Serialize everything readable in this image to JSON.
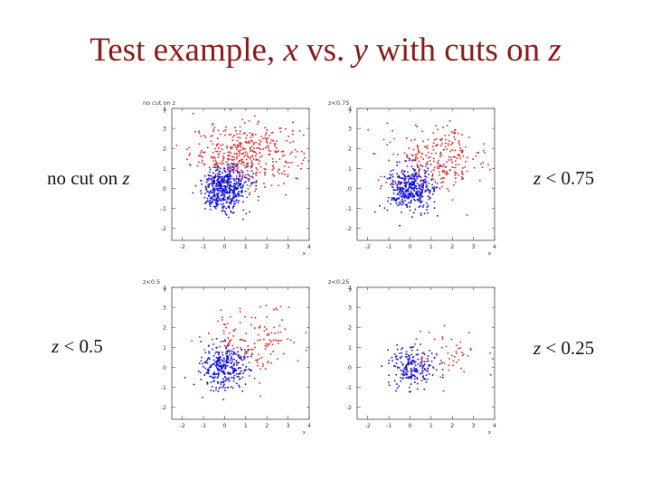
{
  "title": {
    "pre": "Test example, ",
    "x": "x",
    "mid1": " vs. ",
    "y": "y",
    "mid2": " with cuts on ",
    "z": "z"
  },
  "colors": {
    "title": "#8b1a1a",
    "series_a": "#e02020",
    "series_b": "#1010d0"
  },
  "chart_data": [
    {
      "type": "scatter",
      "title": "no cut on z",
      "side_label": {
        "pre": "no cut on ",
        "var": "z",
        "post": ""
      },
      "xlabel": "x",
      "ylabel": "y",
      "xlim": [
        -2.5,
        4
      ],
      "ylim": [
        -2.6,
        4
      ],
      "xticks": [
        "-2",
        "-1",
        "0",
        "1",
        "2",
        "3",
        "4"
      ],
      "yticks": [
        "-2",
        "-1",
        "0",
        "1",
        "2",
        "3",
        "4"
      ],
      "series": [
        {
          "color": "#e02020",
          "center": [
            1.0,
            1.7
          ],
          "spread": [
            1.3,
            0.75
          ],
          "count": 420
        },
        {
          "color": "#1010d0",
          "center": [
            0.0,
            0.0
          ],
          "spread": [
            0.55,
            0.55
          ],
          "count": 520
        }
      ]
    },
    {
      "type": "scatter",
      "title": "z<0.75",
      "side_label": {
        "pre": "",
        "var": "z",
        "post": " < 0.75"
      },
      "xlabel": "x",
      "ylabel": "y",
      "xlim": [
        -2.5,
        4
      ],
      "ylim": [
        -2.6,
        4
      ],
      "xticks": [
        "-2",
        "-1",
        "0",
        "1",
        "2",
        "3",
        "4"
      ],
      "yticks": [
        "-2",
        "-1",
        "0",
        "1",
        "2",
        "3",
        "4"
      ],
      "series": [
        {
          "color": "#e02020",
          "center": [
            1.2,
            1.5
          ],
          "spread": [
            1.2,
            0.8
          ],
          "count": 260
        },
        {
          "color": "#1010d0",
          "center": [
            0.0,
            0.0
          ],
          "spread": [
            0.55,
            0.55
          ],
          "count": 400
        }
      ]
    },
    {
      "type": "scatter",
      "title": "z<0.5",
      "side_label": {
        "pre": "",
        "var": "z",
        "post": " < 0.5"
      },
      "xlabel": "x",
      "ylabel": "y",
      "xlim": [
        -2.5,
        4
      ],
      "ylim": [
        -2.6,
        4
      ],
      "xticks": [
        "-2",
        "-1",
        "0",
        "1",
        "2",
        "3",
        "4"
      ],
      "yticks": [
        "-2",
        "-1",
        "0",
        "1",
        "2",
        "3",
        "4"
      ],
      "series": [
        {
          "color": "#e02020",
          "center": [
            1.4,
            1.3
          ],
          "spread": [
            1.1,
            0.85
          ],
          "count": 150
        },
        {
          "color": "#1010d0",
          "center": [
            0.0,
            0.0
          ],
          "spread": [
            0.55,
            0.55
          ],
          "count": 320
        }
      ]
    },
    {
      "type": "scatter",
      "title": "z<0.25",
      "side_label": {
        "pre": "",
        "var": "z",
        "post": " < 0.25"
      },
      "xlabel": "x",
      "ylabel": "y",
      "xlim": [
        -2.5,
        4
      ],
      "ylim": [
        -2.6,
        4
      ],
      "xticks": [
        "-2",
        "-1",
        "0",
        "1",
        "2",
        "3",
        "4"
      ],
      "yticks": [
        "-2",
        "-1",
        "0",
        "1",
        "2",
        "3",
        "4"
      ],
      "series": [
        {
          "color": "#e02020",
          "center": [
            1.7,
            0.6
          ],
          "spread": [
            0.9,
            0.7
          ],
          "count": 60
        },
        {
          "color": "#1010d0",
          "center": [
            0.0,
            0.0
          ],
          "spread": [
            0.55,
            0.55
          ],
          "count": 200
        }
      ]
    }
  ]
}
